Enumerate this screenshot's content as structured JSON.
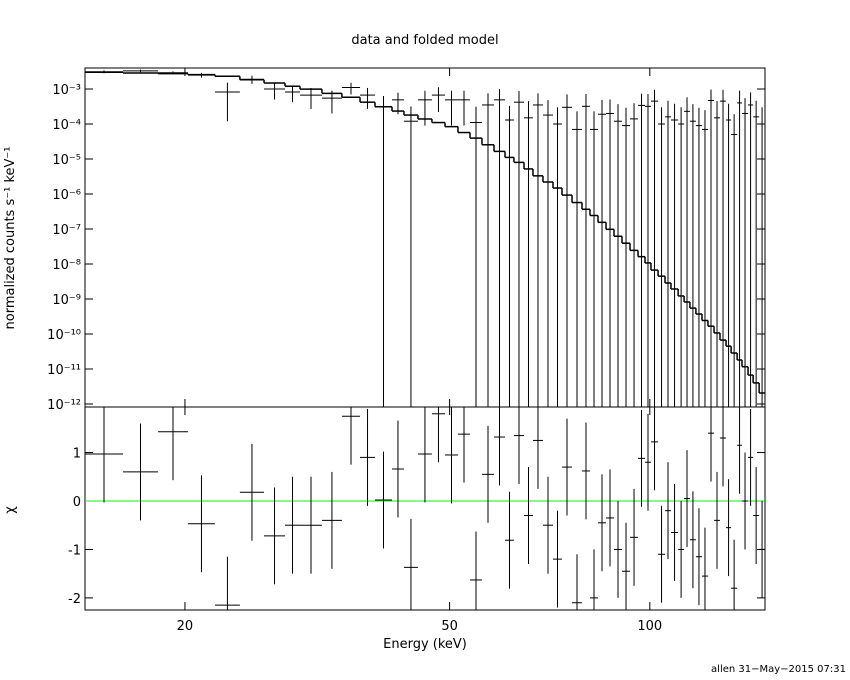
{
  "chart_data": [
    {
      "type": "step",
      "title": "data and folded model",
      "ylabel": "normalized counts s⁻¹ keV⁻¹",
      "xlog": true,
      "ylog": true,
      "xlim": [
        14.15,
        149.0
      ],
      "ylim": [
        8.2e-13,
        0.00398
      ],
      "xticks": [
        20,
        50,
        100
      ],
      "yticks": [
        {
          "value": 0.001,
          "label": "10⁻³"
        },
        {
          "value": 0.0001,
          "label": "10⁻⁴"
        },
        {
          "value": 1e-05,
          "label": "10⁻⁵"
        },
        {
          "value": 1e-06,
          "label": "10⁻⁶"
        },
        {
          "value": 1e-07,
          "label": "10⁻⁷"
        },
        {
          "value": 1e-08,
          "label": "10⁻⁸"
        },
        {
          "value": 1e-09,
          "label": "10⁻⁹"
        },
        {
          "value": 1e-10,
          "label": "10⁻¹⁰"
        },
        {
          "value": 1e-11,
          "label": "10⁻¹¹"
        },
        {
          "value": 1e-12,
          "label": "10⁻¹²"
        }
      ],
      "bins": [
        14.15,
        16.14,
        18.22,
        20.21,
        22.19,
        24.19,
        26.3,
        28.28,
        29.79,
        32.14,
        34.44,
        36.67,
        38.62,
        40.96,
        42.69,
        44.81,
        47.03,
        49.21,
        51.47,
        53.66,
        55.93,
        58.31,
        60.57,
        62.48,
        64.69,
        66.73,
        69.08,
        71.52,
        73.78,
        76.39,
        79.07,
        81.29,
        83.58,
        85.93,
        88.34,
        90.82,
        93.38,
        96.0,
        98.35,
        100.4,
        102.9,
        105.4,
        107.6,
        110.3,
        112.6,
        114.9,
        117.3,
        119.8,
        122.3,
        124.9,
        127.5,
        130.2,
        132.5,
        135.3,
        137.6,
        140.5,
        143.0,
        146.0,
        149.0
      ],
      "data": {
        "color": "#000000",
        "values": [
          0.0031,
          0.0033,
          0.0029,
          0.0025,
          0.00082,
          0.0019,
          0.001,
          0.00082,
          0.00067,
          0.00055,
          0.0011,
          0.00067,
          0.00031,
          0.00049,
          0.00012,
          0.00049,
          0.00067,
          0.00049,
          0.00049,
          0.00011,
          0.00035,
          0.00049,
          0.00013,
          0.00042,
          0.00015,
          0.00035,
          0.00018,
          0.0001,
          0.0003,
          7e-05,
          0.00032,
          7e-05,
          0.00019,
          0.0002,
          0.00012,
          9e-05,
          0.00014,
          0.00034,
          0.00032,
          0.00045,
          0.0001,
          0.00016,
          0.00013,
          0.0001,
          0.00023,
          0.00012,
          9e-05,
          7e-05,
          0.00047,
          0.00015,
          0.00045,
          0.00013,
          5e-05,
          0.0004,
          0.0002,
          0.00035,
          0.00016,
          0.0001
        ],
        "errors": [
          0.0003,
          0.0003,
          0.0003,
          0.0004,
          0.0007,
          0.0005,
          0.0005,
          0.0004,
          0.0004,
          0.00035,
          0.0004,
          0.0004,
          0.00032,
          0.0003,
          0.0002,
          0.0004,
          0.00045,
          0.0004,
          0.0004,
          0.0002,
          0.0004,
          0.0005,
          0.0002,
          0.00045,
          0.0003,
          0.0004,
          0.0003,
          0.0002,
          0.0004,
          0.00016,
          0.0004,
          0.00016,
          0.0003,
          0.0003,
          0.00025,
          0.0002,
          0.00025,
          0.0004,
          0.0004,
          0.0005,
          0.0002,
          0.0003,
          0.00025,
          0.0002,
          0.00035,
          0.00025,
          0.0002,
          0.00018,
          0.0005,
          0.0003,
          0.0005,
          0.00025,
          0.00014,
          0.0005,
          0.00035,
          0.00045,
          0.0003,
          0.0002
        ]
      },
      "model": {
        "color": "#000000",
        "values": [
          0.003,
          0.00286,
          0.00274,
          0.00258,
          0.00232,
          0.00183,
          0.00148,
          0.0012,
          0.00099,
          0.00075,
          0.00058,
          0.00042,
          0.00031,
          0.000234,
          0.00018,
          0.000139,
          0.00011,
          8.4e-05,
          5.7e-05,
          3.95e-05,
          2.55e-05,
          1.65e-05,
          1.11e-05,
          8e-06,
          5.2e-06,
          3.3e-06,
          2.2e-06,
          1.48e-06,
          9.3e-07,
          5.7e-07,
          3.66e-07,
          2.43e-07,
          1.55e-07,
          9.8e-08,
          6.2e-08,
          3.93e-08,
          2.45e-08,
          1.62e-08,
          1.07e-08,
          6.7e-09,
          4.5e-09,
          2.86e-09,
          1.93e-09,
          1.22e-09,
          8.2e-10,
          5.5e-10,
          3.72e-10,
          2.43e-10,
          1.67e-10,
          1.07e-10,
          6.7e-11,
          4.5e-11,
          2.86e-11,
          1.81e-11,
          1.16e-11,
          6.7e-12,
          4e-12,
          2.06e-12
        ]
      }
    },
    {
      "type": "residual",
      "xlabel": "Energy (keV)",
      "ylabel": "χ",
      "xlog": true,
      "xlim": [
        14.15,
        149.0
      ],
      "ylim": [
        -2.25,
        1.94
      ],
      "xticks": [
        20,
        50,
        100
      ],
      "yticks": [
        -2,
        -1,
        0,
        1
      ],
      "reference": {
        "value": 0,
        "color": "#00ff00"
      },
      "error": 1,
      "color": "#000000",
      "values": [
        0.97,
        0.6,
        1.43,
        -0.47,
        -2.15,
        0.18,
        -0.72,
        -0.5,
        -0.5,
        -0.4,
        1.75,
        0.9,
        0.02,
        0.66,
        -1.37,
        0.97,
        1.8,
        0.95,
        1.38,
        -1.63,
        0.55,
        1.32,
        -0.81,
        1.35,
        -0.3,
        1.25,
        -0.5,
        -1.2,
        0.7,
        -2.1,
        0.62,
        -2.0,
        -0.45,
        -0.35,
        -1.0,
        -1.45,
        -0.75,
        0.88,
        0.8,
        1.22,
        -1.1,
        -0.2,
        -0.65,
        -1.0,
        0.05,
        -0.8,
        -1.15,
        -1.55,
        1.4,
        -0.4,
        1.3,
        -0.55,
        -1.8,
        1.15,
        0.0,
        0.9,
        -0.3,
        -1.0
      ]
    }
  ],
  "footer": "allen 31−May−2015 07:31"
}
